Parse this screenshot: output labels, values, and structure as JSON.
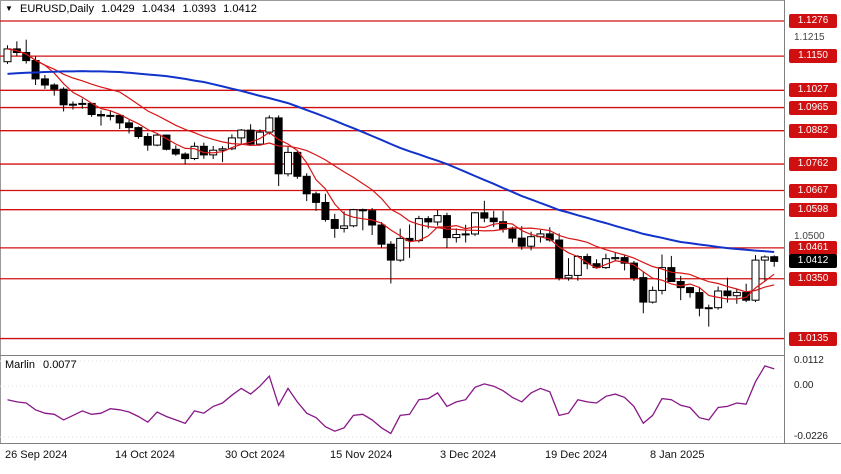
{
  "header": {
    "collapse_icon": "▼",
    "symbol": "EURUSD,Daily",
    "open": "1.0429",
    "high": "1.0434",
    "low": "1.0393",
    "close": "1.0412"
  },
  "price_axis": {
    "ticks": [
      "1.1215",
      "1.0500"
    ],
    "current_price": "1.0412",
    "current_badge_color": "#000000"
  },
  "indicator": {
    "name": "Marlin",
    "value": "0.0077",
    "axis_labels": [
      "0.0112",
      "0.00",
      "-0.0226"
    ]
  },
  "time_axis": {
    "labels": [
      "26 Sep 2024",
      "14 Oct 2024",
      "30 Oct 2024",
      "15 Nov 2024",
      "3 Dec 2024",
      "19 Dec 2024",
      "8 Jan 2025"
    ]
  },
  "chart_data": {
    "type": "candlestick",
    "symbol": "EURUSD",
    "timeframe": "Daily",
    "title": "EURUSD Daily with Marlin oscillator",
    "ylim_main": [
      1.008,
      1.135
    ],
    "ylim_indicator": [
      -0.0226,
      0.0112
    ],
    "levels": [
      1.1276,
      1.115,
      1.1027,
      1.0965,
      1.0882,
      1.0762,
      1.0667,
      1.0598,
      1.0461,
      1.035,
      1.0135
    ],
    "colors": {
      "bull": "#ffffff",
      "bear": "#000000",
      "wick": "#000000",
      "ma_blue": "#1133cc",
      "ma_red": "#d81414",
      "level": "#d01010",
      "marlin": "#881888"
    },
    "candles": [
      [
        1.113,
        1.1189,
        1.1122,
        1.1176
      ],
      [
        1.1176,
        1.1203,
        1.1151,
        1.1163
      ],
      [
        1.1163,
        1.1209,
        1.1123,
        1.1134
      ],
      [
        1.1134,
        1.1149,
        1.1046,
        1.1068
      ],
      [
        1.1068,
        1.1082,
        1.1032,
        1.1046
      ],
      [
        1.1046,
        1.1052,
        1.1008,
        1.1031
      ],
      [
        1.1031,
        1.1038,
        1.0951,
        1.0975
      ],
      [
        1.0975,
        1.0987,
        1.0958,
        1.0977
      ],
      [
        1.0977,
        1.0997,
        1.0961,
        1.098
      ],
      [
        1.098,
        1.0982,
        1.0932,
        1.094
      ],
      [
        1.094,
        1.0955,
        1.09,
        1.0935
      ],
      [
        1.0935,
        1.0955,
        1.0919,
        1.0937
      ],
      [
        1.0937,
        1.0938,
        1.0888,
        1.091
      ],
      [
        1.091,
        1.092,
        1.0872,
        1.0893
      ],
      [
        1.0893,
        1.0897,
        1.0853,
        1.0861
      ],
      [
        1.0861,
        1.0874,
        1.081,
        1.083
      ],
      [
        1.083,
        1.087,
        1.0826,
        1.0866
      ],
      [
        1.0866,
        1.0868,
        1.0811,
        1.0815
      ],
      [
        1.0815,
        1.0829,
        1.0792,
        1.0798
      ],
      [
        1.0798,
        1.0804,
        1.0761,
        1.0782
      ],
      [
        1.0782,
        1.084,
        1.0776,
        1.0826
      ],
      [
        1.0826,
        1.0839,
        1.0781,
        1.0795
      ],
      [
        1.0795,
        1.0827,
        1.078,
        1.0812
      ],
      [
        1.0812,
        1.0826,
        1.0769,
        1.0817
      ],
      [
        1.0817,
        1.0869,
        1.0812,
        1.0856
      ],
      [
        1.0856,
        1.0888,
        1.0832,
        1.0884
      ],
      [
        1.0884,
        1.0905,
        1.0828,
        1.0834
      ],
      [
        1.0834,
        1.0887,
        1.083,
        1.0877
      ],
      [
        1.0877,
        1.0937,
        1.0868,
        1.0928
      ],
      [
        1.0928,
        1.0937,
        1.0683,
        1.0727
      ],
      [
        1.0727,
        1.0825,
        1.0718,
        1.0804
      ],
      [
        1.0804,
        1.0808,
        1.0709,
        1.0718
      ],
      [
        1.0718,
        1.0729,
        1.0629,
        1.0655
      ],
      [
        1.0655,
        1.0663,
        1.0594,
        1.0624
      ],
      [
        1.0624,
        1.0655,
        1.0555,
        1.0563
      ],
      [
        1.0563,
        1.0583,
        1.0497,
        1.0531
      ],
      [
        1.0531,
        1.0592,
        1.0516,
        1.054
      ],
      [
        1.054,
        1.0601,
        1.0535,
        1.0598
      ],
      [
        1.0598,
        1.0602,
        1.0524,
        1.0594
      ],
      [
        1.0594,
        1.0604,
        1.0507,
        1.0543
      ],
      [
        1.0543,
        1.0554,
        1.0461,
        1.0474
      ],
      [
        1.0474,
        1.0485,
        1.0333,
        1.0417
      ],
      [
        1.0417,
        1.053,
        1.0411,
        1.0495
      ],
      [
        1.0495,
        1.0545,
        1.0425,
        1.0487
      ],
      [
        1.0487,
        1.0576,
        1.048,
        1.0566
      ],
      [
        1.0566,
        1.0575,
        1.053,
        1.0554
      ],
      [
        1.0554,
        1.0597,
        1.0541,
        1.0577
      ],
      [
        1.0577,
        1.0587,
        1.0461,
        1.0498
      ],
      [
        1.0498,
        1.0531,
        1.048,
        1.0509
      ],
      [
        1.0509,
        1.0544,
        1.048,
        1.0511
      ],
      [
        1.0511,
        1.059,
        1.0504,
        1.0587
      ],
      [
        1.0587,
        1.063,
        1.0553,
        1.0568
      ],
      [
        1.0568,
        1.0594,
        1.0536,
        1.0555
      ],
      [
        1.0555,
        1.0594,
        1.0516,
        1.0528
      ],
      [
        1.0528,
        1.0537,
        1.048,
        1.0496
      ],
      [
        1.0496,
        1.0539,
        1.0454,
        1.0467
      ],
      [
        1.0467,
        1.0519,
        1.0452,
        1.0501
      ],
      [
        1.0501,
        1.0525,
        1.048,
        1.0511
      ],
      [
        1.0511,
        1.0535,
        1.0483,
        1.0489
      ],
      [
        1.0489,
        1.0513,
        1.0344,
        1.0353
      ],
      [
        1.0353,
        1.0424,
        1.0343,
        1.0362
      ],
      [
        1.0362,
        1.0435,
        1.0343,
        1.043
      ],
      [
        1.043,
        1.044,
        1.0384,
        1.0404
      ],
      [
        1.0404,
        1.042,
        1.0386,
        1.039
      ],
      [
        1.039,
        1.044,
        1.0385,
        1.0422
      ],
      [
        1.0422,
        1.0445,
        1.0415,
        1.0426
      ],
      [
        1.0426,
        1.0437,
        1.038,
        1.0406
      ],
      [
        1.0406,
        1.0414,
        1.0342,
        1.0354
      ],
      [
        1.0354,
        1.0375,
        1.0226,
        1.0266
      ],
      [
        1.0266,
        1.0322,
        1.0261,
        1.0308
      ],
      [
        1.0308,
        1.0437,
        1.0294,
        1.039
      ],
      [
        1.039,
        1.0432,
        1.0339,
        1.034
      ],
      [
        1.034,
        1.036,
        1.0273,
        1.0318
      ],
      [
        1.0318,
        1.0321,
        1.0282,
        1.03
      ],
      [
        1.03,
        1.0321,
        1.0215,
        1.0244
      ],
      [
        1.0244,
        1.0257,
        1.0178,
        1.0246
      ],
      [
        1.0246,
        1.0322,
        1.0239,
        1.0306
      ],
      [
        1.0306,
        1.0354,
        1.0264,
        1.0289
      ],
      [
        1.0289,
        1.0313,
        1.026,
        1.0301
      ],
      [
        1.0301,
        1.0332,
        1.0266,
        1.0273
      ],
      [
        1.0273,
        1.0435,
        1.0266,
        1.0417
      ],
      [
        1.0417,
        1.0434,
        1.0341,
        1.0428
      ],
      [
        1.0429,
        1.0434,
        1.0393,
        1.0412
      ]
    ],
    "blue_ma": [
      1.1086,
      1.1088,
      1.109,
      1.1091,
      1.1093,
      1.1094,
      1.1095,
      1.1095,
      1.1096,
      1.1095,
      1.1095,
      1.1094,
      1.1093,
      1.109,
      1.1087,
      1.1084,
      1.1081,
      1.1078,
      1.1073,
      1.1068,
      1.1062,
      1.1057,
      1.1049,
      1.1041,
      1.1033,
      1.1025,
      1.1016,
      1.1007,
      1.0999,
      1.099,
      1.0981,
      1.0969,
      1.0956,
      1.0944,
      1.0931,
      1.0918,
      1.0904,
      1.0891,
      1.0877,
      1.0863,
      1.0849,
      1.0834,
      1.082,
      1.0808,
      1.0797,
      1.0785,
      1.0774,
      1.0762,
      1.0748,
      1.0734,
      1.0719,
      1.0705,
      1.0691,
      1.0676,
      1.0662,
      1.0647,
      1.0635,
      1.0622,
      1.061,
      1.0597,
      1.0588,
      1.0578,
      1.0569,
      1.0559,
      1.055,
      1.054,
      1.053,
      1.0521,
      1.0511,
      1.0504,
      1.0497,
      1.0489,
      1.0482,
      1.0478,
      1.0473,
      1.0469,
      1.0464,
      1.046,
      1.0457,
      1.0454,
      1.0451,
      1.0449,
      1.0446
    ],
    "marlin": [
      -0.006,
      -0.007,
      -0.0075,
      -0.0105,
      -0.012,
      -0.0125,
      -0.015,
      -0.013,
      -0.011,
      -0.0125,
      -0.012,
      -0.01,
      -0.0105,
      -0.0115,
      -0.0135,
      -0.016,
      -0.0115,
      -0.0135,
      -0.015,
      -0.0165,
      -0.011,
      -0.012,
      -0.009,
      -0.0075,
      -0.004,
      -0.001,
      -0.0035,
      0.0,
      0.0045,
      -0.0085,
      -0.001,
      -0.007,
      -0.012,
      -0.014,
      -0.018,
      -0.02,
      -0.0185,
      -0.013,
      -0.0125,
      -0.015,
      -0.0185,
      -0.021,
      -0.013,
      -0.0125,
      -0.006,
      -0.0055,
      -0.003,
      -0.009,
      -0.007,
      -0.006,
      -0.0005,
      0.001,
      0.0,
      -0.002,
      -0.005,
      -0.007,
      -0.003,
      -0.001,
      -0.0025,
      -0.013,
      -0.012,
      -0.006,
      -0.007,
      -0.0075,
      -0.0045,
      -0.0035,
      -0.005,
      -0.009,
      -0.0165,
      -0.013,
      -0.0055,
      -0.006,
      -0.0085,
      -0.0095,
      -0.014,
      -0.015,
      -0.0095,
      -0.009,
      -0.0075,
      -0.008,
      0.002,
      0.009,
      0.0077
    ]
  }
}
